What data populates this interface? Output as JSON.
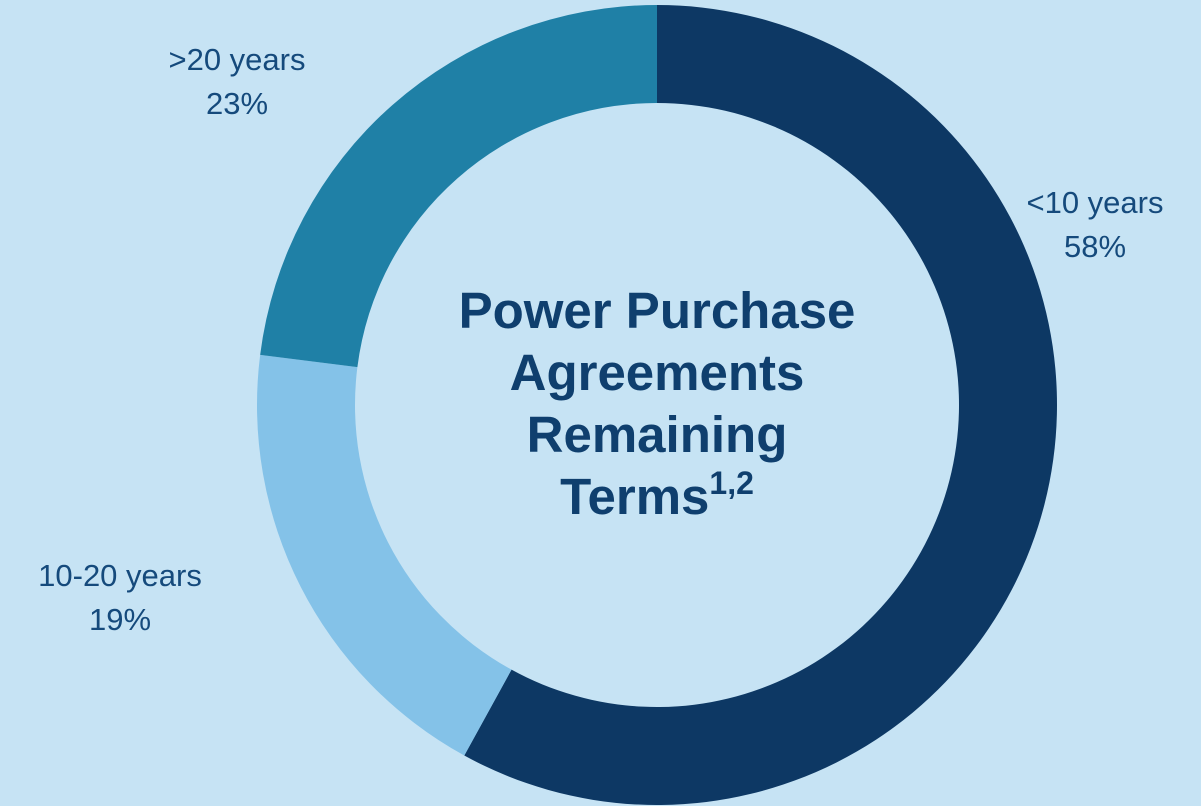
{
  "chart_data": {
    "type": "donut",
    "title_lines": [
      "Power Purchase",
      "Agreements",
      "Remaining",
      "Terms"
    ],
    "title_superscript": "1,2",
    "categories": [
      "<10 years",
      "10-20 years",
      ">20 years"
    ],
    "values": [
      58,
      19,
      23
    ],
    "value_labels": [
      "58%",
      "19%",
      "23%"
    ],
    "colors": [
      "#0d3864",
      "#84c2e8",
      "#1f80a6"
    ]
  }
}
